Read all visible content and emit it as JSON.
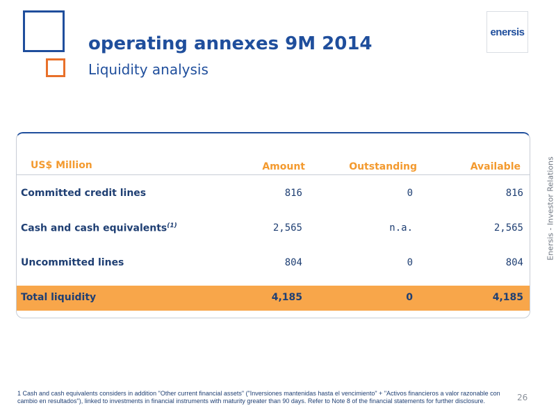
{
  "header": {
    "title": "operating annexes 9M 2014",
    "subtitle": "Liquidity analysis"
  },
  "logo": {
    "text": "enersis"
  },
  "side_label": "Enersis - Investor Relations",
  "table": {
    "unit_label": "US$ Million",
    "columns": [
      "Amount",
      "Outstanding",
      "Available"
    ],
    "rows": [
      {
        "label": "Committed credit lines",
        "amount": "816",
        "outstanding": "0",
        "available": "816"
      },
      {
        "label": "Cash and cash equivalents",
        "footnote_marker": "(1)",
        "amount": "2,565",
        "outstanding": "n.a.",
        "available": "2,565"
      },
      {
        "label": "Uncommitted lines",
        "amount": "804",
        "outstanding": "0",
        "available": "804"
      }
    ],
    "total": {
      "label": "Total liquidity",
      "amount": "4,185",
      "outstanding": "0",
      "available": "4,185"
    }
  },
  "footnote": "1  Cash and cash equivalents considers in addition  \"Other current financial assets\" (\"Inversiones mantenidas hasta el vencimiento\" + \"Activos financieros a valor razonable con cambio en resultados\"), linked to investments in financial instruments with maturity greater than 90 days. Refer to Note 8 of the financial statements for further disclosure.",
  "page_number": "26",
  "colors": {
    "brand_blue": "#1f4e9c",
    "accent_orange": "#e8702a",
    "header_orange": "#f39a2f",
    "total_row_fill": "#f8a64a"
  }
}
